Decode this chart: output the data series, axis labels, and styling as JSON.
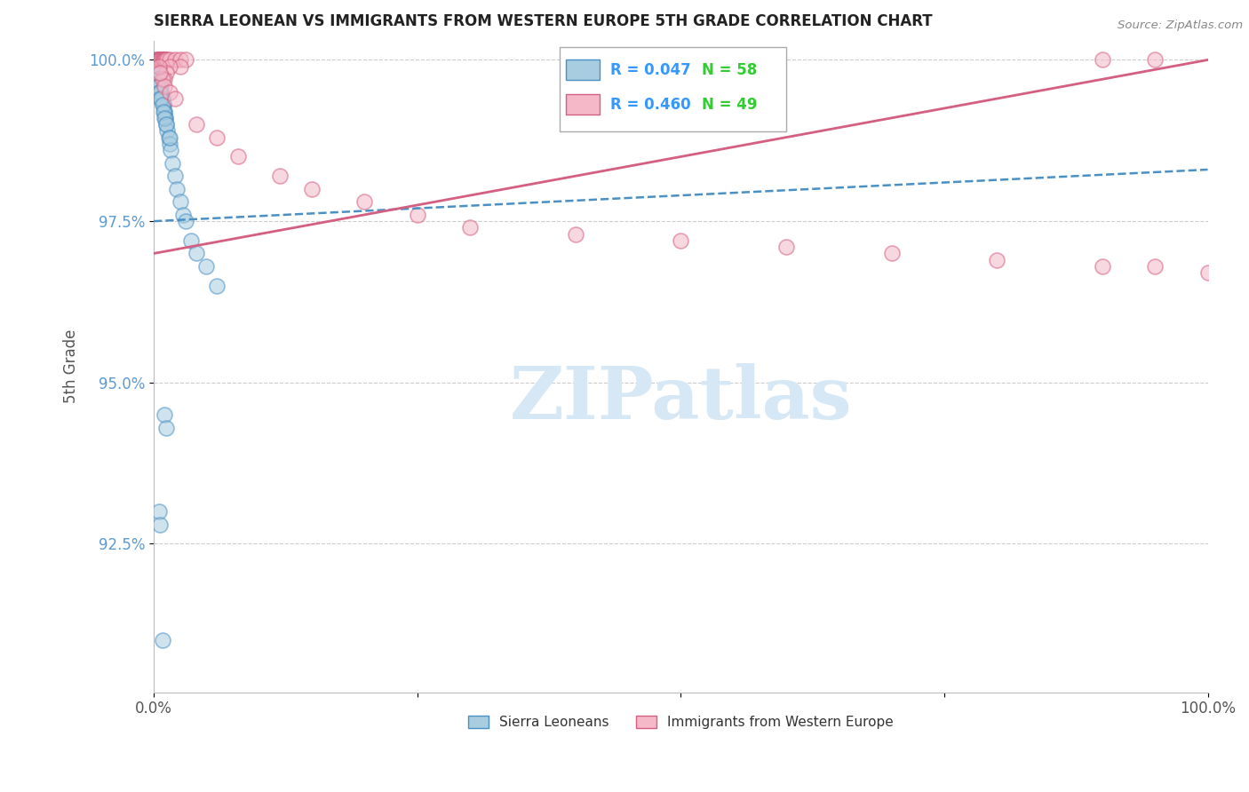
{
  "title": "SIERRA LEONEAN VS IMMIGRANTS FROM WESTERN EUROPE 5TH GRADE CORRELATION CHART",
  "source": "Source: ZipAtlas.com",
  "ylabel": "5th Grade",
  "blue_R": 0.047,
  "blue_N": 58,
  "pink_R": 0.46,
  "pink_N": 49,
  "blue_label": "Sierra Leoneans",
  "pink_label": "Immigrants from Western Europe",
  "blue_face_color": "#a8cce0",
  "blue_edge_color": "#4a90c4",
  "pink_face_color": "#f4b8c8",
  "pink_edge_color": "#d45f80",
  "blue_line_color": "#4a90c4",
  "pink_line_color": "#d45f80",
  "background_color": "#ffffff",
  "grid_color": "#cccccc",
  "watermark_color": "#d6e8f5",
  "ytick_color": "#5b9bd5",
  "xtick_color": "#555555",
  "title_color": "#222222",
  "legend_R_color": "#3399ff",
  "legend_N_color": "#33cc33",
  "source_color": "#888888",
  "ylabel_color": "#555555",
  "xlim": [
    0.0,
    1.0
  ],
  "ylim": [
    0.902,
    1.003
  ],
  "yticks": [
    0.925,
    0.95,
    0.975,
    1.0
  ],
  "ytick_labels": [
    "92.5%",
    "95.0%",
    "97.5%",
    "100.0%"
  ],
  "xtick_labels": [
    "0.0%",
    "",
    "",
    "",
    "100.0%"
  ],
  "blue_x": [
    0.002,
    0.003,
    0.003,
    0.004,
    0.004,
    0.004,
    0.005,
    0.005,
    0.005,
    0.006,
    0.006,
    0.006,
    0.007,
    0.007,
    0.007,
    0.008,
    0.008,
    0.009,
    0.009,
    0.01,
    0.01,
    0.011,
    0.011,
    0.012,
    0.013,
    0.014,
    0.015,
    0.016,
    0.018,
    0.02,
    0.022,
    0.025,
    0.028,
    0.03,
    0.035,
    0.04,
    0.05,
    0.06,
    0.002,
    0.003,
    0.003,
    0.004,
    0.004,
    0.005,
    0.005,
    0.006,
    0.006,
    0.007,
    0.008,
    0.009,
    0.01,
    0.012,
    0.015,
    0.01,
    0.012,
    0.008,
    0.005,
    0.006
  ],
  "blue_y": [
    1.0,
    0.999,
    0.999,
    0.999,
    0.999,
    0.998,
    0.998,
    0.998,
    0.997,
    0.997,
    0.997,
    0.996,
    0.996,
    0.995,
    0.995,
    0.994,
    0.994,
    0.993,
    0.993,
    0.992,
    0.992,
    0.991,
    0.991,
    0.99,
    0.989,
    0.988,
    0.987,
    0.986,
    0.984,
    0.982,
    0.98,
    0.978,
    0.976,
    0.975,
    0.972,
    0.97,
    0.968,
    0.965,
    0.999,
    0.998,
    0.997,
    0.997,
    0.996,
    0.996,
    0.995,
    0.995,
    0.994,
    0.994,
    0.993,
    0.992,
    0.991,
    0.99,
    0.988,
    0.945,
    0.943,
    0.91,
    0.93,
    0.928
  ],
  "pink_x": [
    0.003,
    0.004,
    0.004,
    0.005,
    0.005,
    0.006,
    0.006,
    0.007,
    0.007,
    0.008,
    0.008,
    0.009,
    0.01,
    0.01,
    0.011,
    0.012,
    0.013,
    0.015,
    0.02,
    0.025,
    0.03,
    0.025,
    0.015,
    0.012,
    0.01,
    0.008,
    0.01,
    0.015,
    0.02,
    0.04,
    0.06,
    0.08,
    0.12,
    0.15,
    0.2,
    0.25,
    0.3,
    0.4,
    0.5,
    0.6,
    0.7,
    0.8,
    0.9,
    0.95,
    1.0,
    0.9,
    0.95,
    0.005,
    0.006
  ],
  "pink_y": [
    1.0,
    1.0,
    1.0,
    1.0,
    1.0,
    1.0,
    1.0,
    1.0,
    1.0,
    1.0,
    1.0,
    1.0,
    1.0,
    1.0,
    1.0,
    1.0,
    1.0,
    1.0,
    1.0,
    1.0,
    1.0,
    0.999,
    0.999,
    0.998,
    0.997,
    0.997,
    0.996,
    0.995,
    0.994,
    0.99,
    0.988,
    0.985,
    0.982,
    0.98,
    0.978,
    0.976,
    0.974,
    0.973,
    0.972,
    0.971,
    0.97,
    0.969,
    0.968,
    0.968,
    0.967,
    1.0,
    1.0,
    0.999,
    0.998
  ]
}
